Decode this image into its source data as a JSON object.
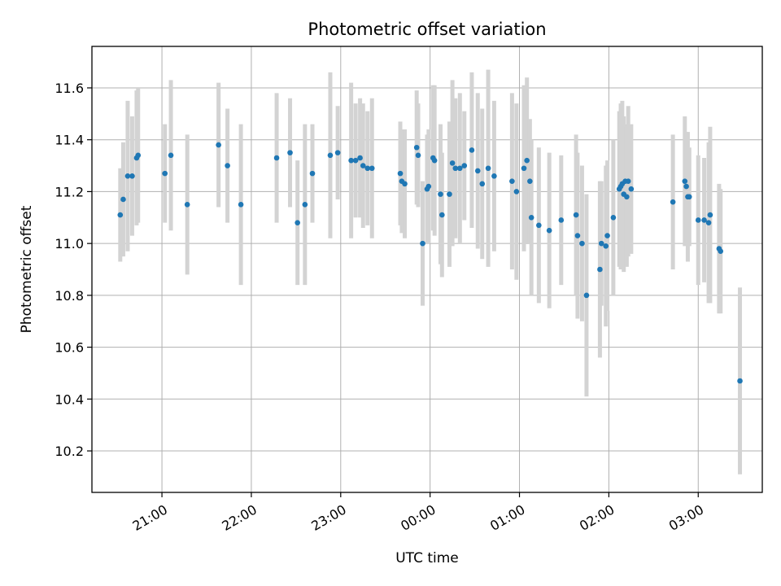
{
  "chart_data": {
    "type": "scatter",
    "title": "Photometric offset variation",
    "xlabel": "UTC time",
    "ylabel": "Photometric offset",
    "x_axis": {
      "kind": "time",
      "ticks": [
        "21:00",
        "22:00",
        "23:00",
        "00:00",
        "01:00",
        "02:00",
        "03:00"
      ],
      "range": [
        "20:13",
        "03:43"
      ]
    },
    "y_axis": {
      "ticks": [
        "10.2",
        "10.4",
        "10.6",
        "10.8",
        "11.0",
        "11.2",
        "11.4",
        "11.6"
      ],
      "range": [
        10.04,
        11.76
      ]
    },
    "grid": true,
    "colors": {
      "point": "#1f77b4",
      "errorbar": "#d3d3d3"
    },
    "points": [
      {
        "t": "20:32",
        "y": 11.11,
        "e": 0.18
      },
      {
        "t": "20:34",
        "y": 11.17,
        "e": 0.22
      },
      {
        "t": "20:37",
        "y": 11.26,
        "e": 0.29
      },
      {
        "t": "20:40",
        "y": 11.26,
        "e": 0.23
      },
      {
        "t": "20:43",
        "y": 11.33,
        "e": 0.26
      },
      {
        "t": "20:44",
        "y": 11.34,
        "e": 0.26
      },
      {
        "t": "21:02",
        "y": 11.27,
        "e": 0.19
      },
      {
        "t": "21:06",
        "y": 11.34,
        "e": 0.29
      },
      {
        "t": "21:17",
        "y": 11.15,
        "e": 0.27
      },
      {
        "t": "21:38",
        "y": 11.38,
        "e": 0.24
      },
      {
        "t": "21:44",
        "y": 11.3,
        "e": 0.22
      },
      {
        "t": "21:53",
        "y": 11.15,
        "e": 0.31
      },
      {
        "t": "22:17",
        "y": 11.33,
        "e": 0.25
      },
      {
        "t": "22:26",
        "y": 11.35,
        "e": 0.21
      },
      {
        "t": "22:31",
        "y": 11.08,
        "e": 0.24
      },
      {
        "t": "22:36",
        "y": 11.15,
        "e": 0.31
      },
      {
        "t": "22:41",
        "y": 11.27,
        "e": 0.19
      },
      {
        "t": "22:53",
        "y": 11.34,
        "e": 0.32
      },
      {
        "t": "22:58",
        "y": 11.35,
        "e": 0.18
      },
      {
        "t": "23:07",
        "y": 11.32,
        "e": 0.3
      },
      {
        "t": "23:10",
        "y": 11.32,
        "e": 0.22
      },
      {
        "t": "23:13",
        "y": 11.33,
        "e": 0.23
      },
      {
        "t": "23:15",
        "y": 11.3,
        "e": 0.24
      },
      {
        "t": "23:18",
        "y": 11.29,
        "e": 0.22
      },
      {
        "t": "23:21",
        "y": 11.29,
        "e": 0.27
      },
      {
        "t": "23:40",
        "y": 11.27,
        "e": 0.2
      },
      {
        "t": "23:41",
        "y": 11.24,
        "e": 0.2
      },
      {
        "t": "23:43",
        "y": 11.23,
        "e": 0.21
      },
      {
        "t": "23:51",
        "y": 11.37,
        "e": 0.22
      },
      {
        "t": "23:52",
        "y": 11.34,
        "e": 0.2
      },
      {
        "t": "23:55",
        "y": 11.0,
        "e": 0.24
      },
      {
        "t": "23:58",
        "y": 11.21,
        "e": 0.21
      },
      {
        "t": "23:59",
        "y": 11.22,
        "e": 0.22
      },
      {
        "t": "00:02",
        "y": 11.33,
        "e": 0.28
      },
      {
        "t": "00:03",
        "y": 11.32,
        "e": 0.29
      },
      {
        "t": "00:07",
        "y": 11.19,
        "e": 0.27
      },
      {
        "t": "00:08",
        "y": 11.11,
        "e": 0.24
      },
      {
        "t": "00:13",
        "y": 11.19,
        "e": 0.28
      },
      {
        "t": "00:15",
        "y": 11.31,
        "e": 0.32
      },
      {
        "t": "00:17",
        "y": 11.29,
        "e": 0.27
      },
      {
        "t": "00:20",
        "y": 11.29,
        "e": 0.29
      },
      {
        "t": "00:23",
        "y": 11.3,
        "e": 0.21
      },
      {
        "t": "00:28",
        "y": 11.36,
        "e": 0.3
      },
      {
        "t": "00:32",
        "y": 11.28,
        "e": 0.3
      },
      {
        "t": "00:35",
        "y": 11.23,
        "e": 0.29
      },
      {
        "t": "00:39",
        "y": 11.29,
        "e": 0.38
      },
      {
        "t": "00:43",
        "y": 11.26,
        "e": 0.29
      },
      {
        "t": "00:55",
        "y": 11.24,
        "e": 0.34
      },
      {
        "t": "00:58",
        "y": 11.2,
        "e": 0.34
      },
      {
        "t": "01:03",
        "y": 11.29,
        "e": 0.32
      },
      {
        "t": "01:05",
        "y": 11.32,
        "e": 0.32
      },
      {
        "t": "01:07",
        "y": 11.24,
        "e": 0.24
      },
      {
        "t": "01:08",
        "y": 11.1,
        "e": 0.3
      },
      {
        "t": "01:13",
        "y": 11.07,
        "e": 0.3
      },
      {
        "t": "01:20",
        "y": 11.05,
        "e": 0.3
      },
      {
        "t": "01:28",
        "y": 11.09,
        "e": 0.25
      },
      {
        "t": "01:38",
        "y": 11.11,
        "e": 0.31
      },
      {
        "t": "01:39",
        "y": 11.03,
        "e": 0.32
      },
      {
        "t": "01:42",
        "y": 11.0,
        "e": 0.3
      },
      {
        "t": "01:45",
        "y": 10.8,
        "e": 0.39
      },
      {
        "t": "01:54",
        "y": 10.9,
        "e": 0.34
      },
      {
        "t": "01:55",
        "y": 11.0,
        "e": 0.24
      },
      {
        "t": "01:58",
        "y": 10.99,
        "e": 0.31
      },
      {
        "t": "01:59",
        "y": 11.03,
        "e": 0.29
      },
      {
        "t": "02:03",
        "y": 11.1,
        "e": 0.3
      },
      {
        "t": "02:07",
        "y": 11.21,
        "e": 0.3
      },
      {
        "t": "02:08",
        "y": 11.22,
        "e": 0.32
      },
      {
        "t": "02:09",
        "y": 11.23,
        "e": 0.32
      },
      {
        "t": "02:10",
        "y": 11.19,
        "e": 0.3
      },
      {
        "t": "02:11",
        "y": 11.24,
        "e": 0.22
      },
      {
        "t": "02:12",
        "y": 11.18,
        "e": 0.27
      },
      {
        "t": "02:13",
        "y": 11.24,
        "e": 0.29
      },
      {
        "t": "02:15",
        "y": 11.21,
        "e": 0.25
      },
      {
        "t": "02:43",
        "y": 11.16,
        "e": 0.26
      },
      {
        "t": "02:51",
        "y": 11.24,
        "e": 0.25
      },
      {
        "t": "02:52",
        "y": 11.22,
        "e": 0.21
      },
      {
        "t": "02:53",
        "y": 11.18,
        "e": 0.25
      },
      {
        "t": "02:54",
        "y": 11.18,
        "e": 0.19
      },
      {
        "t": "03:00",
        "y": 11.09,
        "e": 0.25
      },
      {
        "t": "03:04",
        "y": 11.09,
        "e": 0.24
      },
      {
        "t": "03:07",
        "y": 11.08,
        "e": 0.31
      },
      {
        "t": "03:08",
        "y": 11.11,
        "e": 0.34
      },
      {
        "t": "03:14",
        "y": 10.98,
        "e": 0.25
      },
      {
        "t": "03:15",
        "y": 10.97,
        "e": 0.24
      },
      {
        "t": "03:28",
        "y": 10.47,
        "e": 0.36
      }
    ]
  }
}
